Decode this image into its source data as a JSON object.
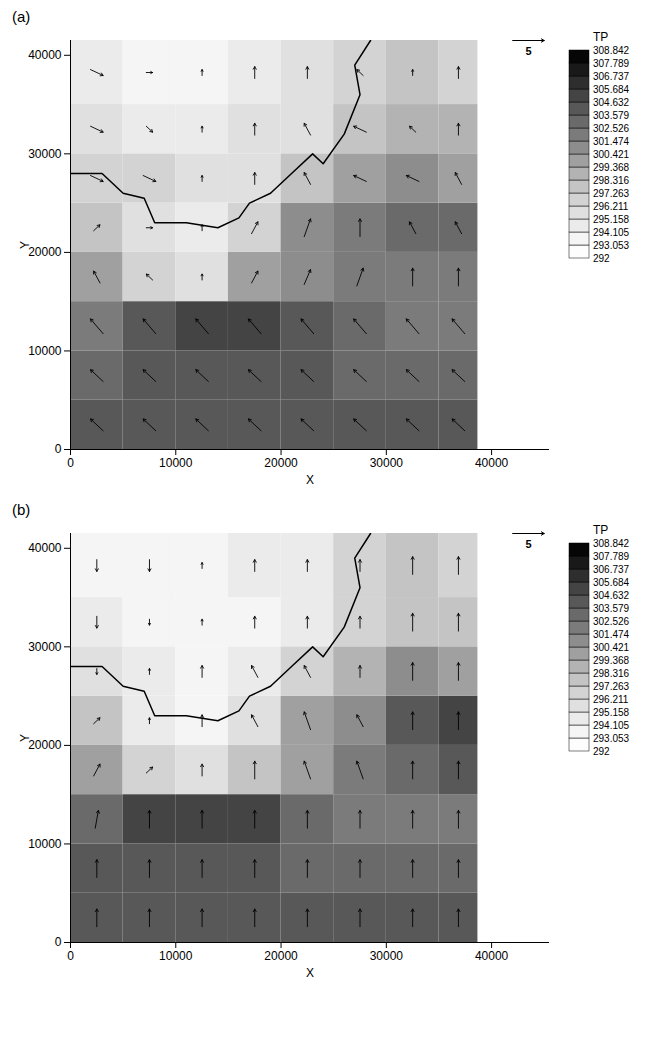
{
  "chart_data": [
    {
      "type": "vector_field",
      "panel_label": "(a)",
      "x_label": "X",
      "y_label": "Y",
      "xlim": [
        0,
        45500
      ],
      "ylim": [
        0,
        41500
      ],
      "xticks": [
        0,
        10000,
        20000,
        30000,
        40000
      ],
      "yticks": [
        0,
        10000,
        20000,
        30000,
        40000
      ],
      "reference_vector": 5,
      "colorbar": {
        "title": "TP",
        "ticks": [
          292,
          293.053,
          294.105,
          295.158,
          296.211,
          297.263,
          298.316,
          299.368,
          300.421,
          301.474,
          302.526,
          303.579,
          304.632,
          305.684,
          306.737,
          307.789,
          308.842
        ]
      },
      "grid": {
        "x_edges": [
          0,
          5000,
          10000,
          15000,
          20000,
          25000,
          30000,
          35000,
          38700
        ],
        "y_edges": [
          0,
          5000,
          10000,
          15000,
          20000,
          25000,
          30000,
          35000,
          41500
        ],
        "TP": [
          [
            304,
            304,
            304,
            304,
            304,
            304,
            304,
            304
          ],
          [
            303,
            304,
            304,
            304,
            304,
            303,
            303,
            303
          ],
          [
            302,
            304,
            305,
            305,
            304,
            303,
            302,
            302
          ],
          [
            300,
            297,
            296,
            300,
            301,
            302,
            302,
            302
          ],
          [
            298,
            296,
            295,
            297,
            301,
            302,
            303,
            303
          ],
          [
            297,
            297,
            296,
            296,
            298,
            300,
            301,
            300
          ],
          [
            296,
            295,
            295,
            296,
            296,
            298,
            299,
            299
          ],
          [
            295,
            294,
            294,
            295,
            296,
            297,
            298,
            297
          ]
        ],
        "u": [
          [
            -2,
            -2,
            -2,
            -2,
            -2,
            -2,
            -2,
            -2
          ],
          [
            -2,
            -2,
            -2,
            -2,
            -2,
            -2,
            -2,
            -2
          ],
          [
            -2,
            -2,
            -2,
            -2,
            -2,
            -2,
            -2,
            -2
          ],
          [
            -1,
            -1,
            0,
            1,
            1,
            1,
            0,
            0
          ],
          [
            1,
            1,
            0,
            1,
            1,
            0,
            -1,
            -1
          ],
          [
            2,
            2,
            0,
            0,
            -1,
            -2,
            -2,
            -1
          ],
          [
            2,
            1,
            0,
            0,
            -1,
            -2,
            -1,
            0
          ],
          [
            2,
            1,
            0,
            0,
            0,
            -1,
            0,
            0
          ]
        ],
        "v": [
          [
            2,
            2,
            2,
            2,
            2,
            2,
            2,
            2
          ],
          [
            2,
            2,
            2,
            2,
            2,
            2,
            2,
            2
          ],
          [
            2.5,
            2.5,
            2.5,
            2.5,
            2.5,
            2.5,
            2.5,
            2.5
          ],
          [
            2,
            1,
            1,
            2,
            2.5,
            3,
            3,
            3
          ],
          [
            1,
            0,
            1,
            2,
            3,
            3,
            2,
            2
          ],
          [
            -1,
            -1,
            1,
            2,
            2,
            1,
            1,
            2
          ],
          [
            -1,
            -1,
            1,
            2,
            2,
            1,
            1,
            2
          ],
          [
            -1,
            0,
            1,
            2,
            2,
            1,
            1,
            2
          ]
        ]
      },
      "coastline": [
        [
          0,
          28000
        ],
        [
          3000,
          28000
        ],
        [
          5000,
          26000
        ],
        [
          7000,
          25500
        ],
        [
          8000,
          23000
        ],
        [
          11000,
          23000
        ],
        [
          14000,
          22500
        ],
        [
          16000,
          23500
        ],
        [
          17000,
          25000
        ],
        [
          19000,
          26000
        ],
        [
          21000,
          28000
        ],
        [
          23000,
          30000
        ],
        [
          24000,
          29000
        ],
        [
          26000,
          32000
        ],
        [
          27500,
          36000
        ],
        [
          27000,
          39000
        ],
        [
          28500,
          41500
        ]
      ]
    },
    {
      "type": "vector_field",
      "panel_label": "(b)",
      "x_label": "X",
      "y_label": "Y",
      "xlim": [
        0,
        45500
      ],
      "ylim": [
        0,
        41500
      ],
      "xticks": [
        0,
        10000,
        20000,
        30000,
        40000
      ],
      "yticks": [
        0,
        10000,
        20000,
        30000,
        40000
      ],
      "reference_vector": 5,
      "colorbar": {
        "title": "TP",
        "ticks": [
          292,
          293.053,
          294.105,
          295.158,
          296.211,
          297.263,
          298.316,
          299.368,
          300.421,
          301.474,
          302.526,
          303.579,
          304.632,
          305.684,
          306.737,
          307.789,
          308.842
        ]
      },
      "grid": {
        "x_edges": [
          0,
          5000,
          10000,
          15000,
          20000,
          25000,
          30000,
          35000,
          38700
        ],
        "y_edges": [
          0,
          5000,
          10000,
          15000,
          20000,
          25000,
          30000,
          35000,
          41500
        ],
        "TP": [
          [
            304,
            304,
            304,
            304,
            304,
            304,
            304,
            304
          ],
          [
            304,
            304,
            304,
            304,
            303,
            303,
            303,
            303
          ],
          [
            303,
            305,
            305,
            305,
            303,
            302,
            302,
            302
          ],
          [
            300,
            297,
            296,
            298,
            300,
            302,
            303,
            304
          ],
          [
            298,
            295,
            294,
            296,
            300,
            301,
            304,
            305
          ],
          [
            296,
            295,
            294,
            295,
            297,
            299,
            301,
            300
          ],
          [
            295,
            294,
            294,
            294,
            295,
            297,
            298,
            298
          ],
          [
            294,
            294,
            294,
            295,
            295,
            297,
            298,
            297
          ]
        ],
        "u": [
          [
            0,
            0,
            0,
            0,
            0,
            0,
            0,
            0
          ],
          [
            0,
            0,
            0,
            0,
            0,
            0,
            0,
            0
          ],
          [
            0.5,
            0,
            0,
            0,
            0,
            0,
            0,
            0
          ],
          [
            1,
            1,
            0,
            0,
            -1,
            -1,
            0,
            0
          ],
          [
            1,
            0,
            0,
            -1,
            -1,
            -1,
            0,
            0
          ],
          [
            0,
            0,
            0,
            -1,
            -1,
            0,
            0,
            0
          ],
          [
            0,
            0,
            0,
            0,
            0,
            0,
            0,
            0
          ],
          [
            0,
            0,
            0,
            0,
            0,
            0,
            0,
            0
          ]
        ],
        "v": [
          [
            3,
            3,
            3,
            3,
            3,
            3,
            3,
            3
          ],
          [
            3,
            3,
            3,
            3,
            3,
            3,
            3,
            3
          ],
          [
            3,
            3,
            3,
            3,
            3,
            3,
            3,
            3
          ],
          [
            2,
            1,
            2,
            3,
            3,
            3,
            3,
            3
          ],
          [
            1,
            1,
            2,
            2,
            3,
            2,
            3,
            3
          ],
          [
            -1,
            1,
            2,
            2,
            2,
            2,
            3,
            3
          ],
          [
            -2,
            -1,
            1,
            2,
            2,
            2,
            3,
            3
          ],
          [
            -2,
            -2,
            1,
            2,
            2,
            2,
            3,
            3
          ]
        ]
      },
      "coastline": [
        [
          0,
          28000
        ],
        [
          3000,
          28000
        ],
        [
          5000,
          26000
        ],
        [
          7000,
          25500
        ],
        [
          8000,
          23000
        ],
        [
          11000,
          23000
        ],
        [
          14000,
          22500
        ],
        [
          16000,
          23500
        ],
        [
          17000,
          25000
        ],
        [
          19000,
          26000
        ],
        [
          21000,
          28000
        ],
        [
          23000,
          30000
        ],
        [
          24000,
          29000
        ],
        [
          26000,
          32000
        ],
        [
          27500,
          36000
        ],
        [
          27000,
          39000
        ],
        [
          28500,
          41500
        ]
      ]
    }
  ]
}
